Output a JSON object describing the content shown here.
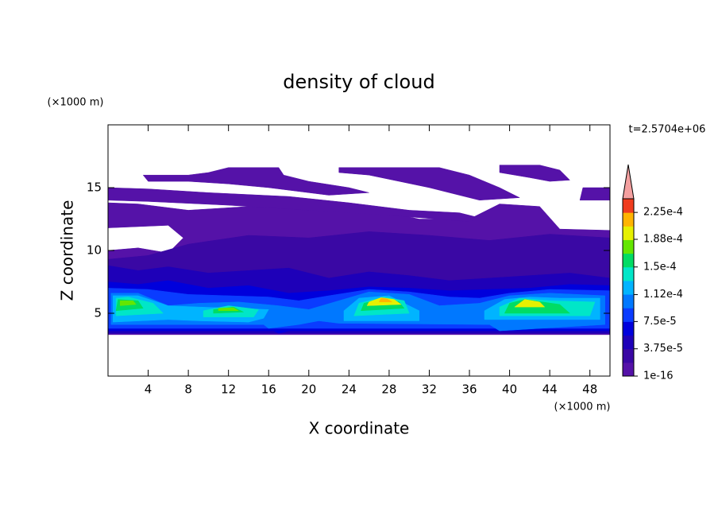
{
  "chart_data": {
    "type": "contour",
    "title": "density of cloud",
    "xlabel": "X coordinate",
    "ylabel": "Z coordinate",
    "x_unit": "(×1000 m)",
    "y_unit": "(×1000 m)",
    "annotation": "t=2.5704e+06",
    "xlim": [
      0,
      50
    ],
    "ylim": [
      0,
      20
    ],
    "xticks": [
      4,
      8,
      12,
      16,
      20,
      24,
      28,
      32,
      36,
      40,
      44,
      48
    ],
    "yticks": [
      5,
      10,
      15
    ],
    "colorbar": {
      "lim": [
        1e-16,
        0.00024375
      ],
      "ticks": [
        {
          "value": 1e-16,
          "label": "1e-16"
        },
        {
          "value": 3.75e-05,
          "label": "3.75e-5"
        },
        {
          "value": 7.5e-05,
          "label": "7.5e-5"
        },
        {
          "value": 0.000112,
          "label": "1.12e-4"
        },
        {
          "value": 0.00015,
          "label": "1.5e-4"
        },
        {
          "value": 0.000188,
          "label": "1.88e-4"
        },
        {
          "value": 0.000225,
          "label": "2.25e-4"
        }
      ],
      "colors": [
        "#5512a8",
        "#3a08a4",
        "#1e00b8",
        "#0000dc",
        "#0a3cff",
        "#0078ff",
        "#00b4ff",
        "#00e6c8",
        "#00dc64",
        "#64e600",
        "#e6f000",
        "#ffb400",
        "#f03c1e"
      ],
      "extend_color": "#f4a0a0"
    },
    "regions": [
      {
        "value": 1e-05,
        "x": [
          0,
          50,
          50,
          45,
          43,
          39,
          36,
          31,
          28,
          24,
          20,
          14,
          8,
          3,
          0,
          0,
          6,
          7.5,
          6,
          3,
          0
        ],
        "y": [
          3.3,
          3.3,
          11.6,
          11.7,
          13.5,
          13.7,
          12.5,
          12.5,
          13,
          13.3,
          13.6,
          13.5,
          13.2,
          13.7,
          13.8,
          11.8,
          12,
          11,
          9.8,
          10.2,
          10
        ]
      },
      {
        "value": 1e-05,
        "x": [
          0,
          4,
          10,
          18,
          24,
          30,
          35,
          37,
          36,
          28,
          20,
          12,
          4,
          0
        ],
        "y": [
          15,
          14.9,
          14.6,
          14.3,
          13.8,
          13.2,
          13,
          12.6,
          12.3,
          12.8,
          13.2,
          13.6,
          13.9,
          14
        ]
      },
      {
        "value": 1e-05,
        "x": [
          3.5,
          8,
          10,
          12,
          17,
          17.5,
          20,
          24,
          26,
          22,
          16,
          12,
          8,
          4
        ],
        "y": [
          16,
          16,
          16.2,
          16.6,
          16.6,
          16,
          15.5,
          15,
          14.6,
          14.4,
          15,
          15.3,
          15.5,
          15.5
        ]
      },
      {
        "value": 1e-05,
        "x": [
          23,
          33,
          36,
          39,
          41,
          37,
          35,
          32,
          29,
          26,
          23
        ],
        "y": [
          16.6,
          16.6,
          16,
          15,
          14.2,
          14,
          14.4,
          15,
          15.5,
          16,
          16.2
        ]
      },
      {
        "value": 1e-05,
        "x": [
          39,
          43,
          45,
          46,
          44,
          42,
          39
        ],
        "y": [
          16.8,
          16.8,
          16.4,
          15.6,
          15.5,
          15.8,
          16.2
        ]
      },
      {
        "value": 1e-05,
        "x": [
          47.3,
          50,
          50,
          47
        ],
        "y": [
          15,
          15,
          14,
          14
        ]
      },
      {
        "value": 2.8e-05,
        "x": [
          0,
          50,
          50,
          44,
          38,
          32,
          26,
          20,
          14,
          8,
          4,
          0
        ],
        "y": [
          3.4,
          3.4,
          11,
          11.3,
          10.8,
          11.2,
          11.5,
          11,
          11.2,
          10.5,
          9.6,
          9.3
        ]
      },
      {
        "value": 4.7e-05,
        "x": [
          0,
          50,
          50,
          46,
          42,
          38,
          34,
          30,
          26,
          22,
          18,
          14,
          10,
          6,
          3,
          0
        ],
        "y": [
          3.4,
          3.4,
          7.8,
          8.2,
          8,
          7.8,
          7.6,
          8,
          8.3,
          7.8,
          8.6,
          8.4,
          8.2,
          8.7,
          8.4,
          8.8
        ]
      },
      {
        "value": 6.5e-05,
        "x": [
          0,
          16.5,
          17,
          18,
          50,
          50,
          46,
          42,
          38,
          34,
          30,
          26,
          22,
          18,
          14,
          10,
          6,
          3,
          0
        ],
        "y": [
          3.6,
          3.6,
          3.4,
          3.6,
          3.6,
          7.2,
          7.3,
          7,
          6.9,
          6.8,
          7,
          7.1,
          6.8,
          6.6,
          7.2,
          7,
          7.6,
          7.3,
          7.5
        ]
      },
      {
        "value": 8.4e-05,
        "x": [
          0,
          50,
          50,
          44,
          40,
          37,
          34,
          30,
          26,
          22,
          19,
          16,
          12,
          8,
          4,
          0
        ],
        "y": [
          3.8,
          3.8,
          6.8,
          6.9,
          6.6,
          6.2,
          6.3,
          6.7,
          6.9,
          6.4,
          6,
          6.3,
          6.4,
          6.5,
          6.9,
          7
        ]
      },
      {
        "value": 0.000103,
        "x": [
          0.3,
          15.5,
          16,
          19,
          21,
          23,
          38,
          39,
          49.5,
          49.5,
          44,
          40,
          37,
          33,
          30,
          26,
          23,
          20,
          17,
          13,
          9,
          6,
          3,
          0.3
        ],
        "y": [
          4.1,
          4.1,
          3.8,
          4.1,
          4.4,
          4.2,
          4.1,
          3.6,
          4.1,
          6.4,
          6.6,
          6.4,
          5.8,
          5.6,
          6.5,
          6.7,
          6,
          5.3,
          5.6,
          5.9,
          5.8,
          5.6,
          6.6,
          6.6
        ]
      },
      {
        "value": 0.000122,
        "x": [
          0.5,
          6,
          9,
          14,
          15.5,
          16,
          9,
          6,
          3,
          0.5
        ],
        "y": [
          4.3,
          4.5,
          4.4,
          4.3,
          4.6,
          5.3,
          5.5,
          5.6,
          6.4,
          6.4
        ]
      },
      {
        "value": 0.000122,
        "x": [
          23.5,
          31,
          31,
          28,
          25,
          23.5
        ],
        "y": [
          4.4,
          4.4,
          5.2,
          6.4,
          6.2,
          5.2
        ]
      },
      {
        "value": 0.000122,
        "x": [
          37.5,
          49,
          49,
          45,
          42,
          39.5,
          37.5
        ],
        "y": [
          4.5,
          4.5,
          6.2,
          6.2,
          6.3,
          6.1,
          5.2
        ]
      },
      {
        "value": 0.00014,
        "x": [
          0.8,
          5.5,
          4.5,
          2,
          0.8
        ],
        "y": [
          4.8,
          5,
          5.8,
          6.3,
          6.2
        ]
      },
      {
        "value": 0.00014,
        "x": [
          9.5,
          14.5,
          15,
          12,
          9.5
        ],
        "y": [
          4.7,
          4.7,
          5.3,
          5.6,
          5.2
        ]
      },
      {
        "value": 0.00014,
        "x": [
          24.5,
          30,
          29.5,
          27.5,
          25
        ],
        "y": [
          4.8,
          5,
          6,
          6.3,
          5.8
        ]
      },
      {
        "value": 0.00014,
        "x": [
          39,
          48,
          48.5,
          44,
          41,
          39
        ],
        "y": [
          4.8,
          4.8,
          5.9,
          6,
          6.2,
          5.5
        ]
      },
      {
        "value": 0.00016,
        "x": [
          0.8,
          3.5,
          3,
          1
        ],
        "y": [
          5.2,
          5.4,
          6,
          6.1
        ]
      },
      {
        "value": 0.00016,
        "x": [
          10.5,
          13.5,
          12.5,
          10.5
        ],
        "y": [
          5,
          5.1,
          5.5,
          5.3
        ]
      },
      {
        "value": 0.00016,
        "x": [
          25.2,
          29.5,
          29,
          27.5,
          25.5
        ],
        "y": [
          5.2,
          5.4,
          5.9,
          6.2,
          5.8
        ]
      },
      {
        "value": 0.00016,
        "x": [
          39.5,
          46,
          45,
          41.5,
          40
        ],
        "y": [
          5,
          5,
          5.7,
          6.1,
          5.8
        ]
      },
      {
        "value": 0.000197,
        "x": [
          25.8,
          29.2,
          28.5,
          27.2,
          26
        ],
        "y": [
          5.6,
          5.7,
          6.1,
          6.25,
          5.9
        ]
      },
      {
        "value": 0.000197,
        "x": [
          40.5,
          43.5,
          43,
          41.5
        ],
        "y": [
          5.5,
          5.5,
          5.9,
          6.1
        ]
      },
      {
        "value": 0.000178,
        "x": [
          11,
          13,
          12.5,
          11
        ],
        "y": [
          5.2,
          5.2,
          5.45,
          5.4
        ]
      },
      {
        "value": 0.000178,
        "x": [
          1.2,
          2.8,
          2.5,
          1.2
        ],
        "y": [
          5.6,
          5.7,
          6,
          6
        ]
      },
      {
        "value": 0.000215,
        "x": [
          27,
          28.3,
          27.8,
          27.2
        ],
        "y": [
          5.9,
          5.9,
          6.15,
          6.2
        ]
      }
    ]
  }
}
